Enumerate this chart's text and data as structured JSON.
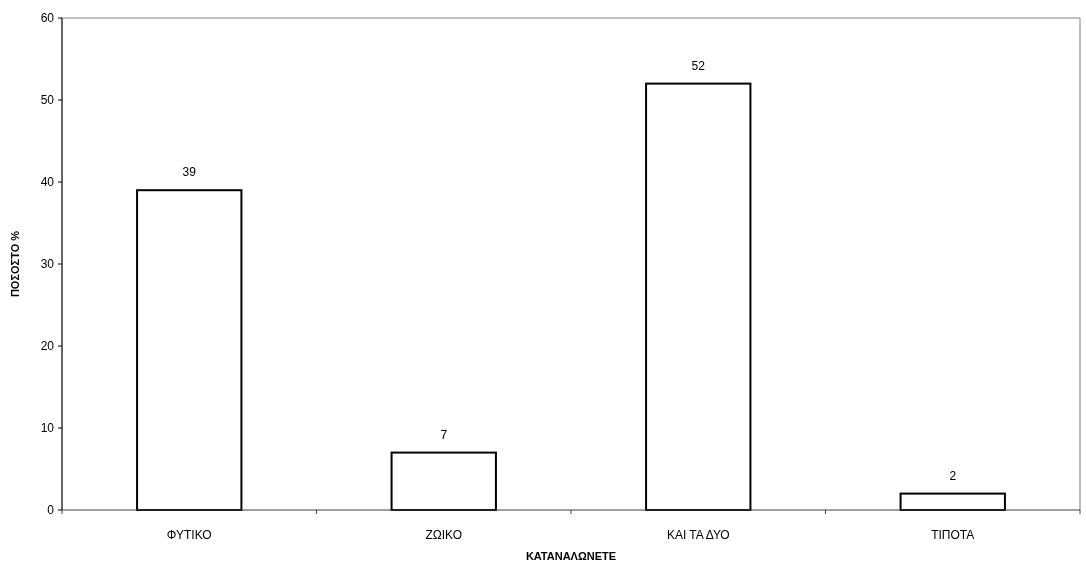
{
  "chart_data": {
    "type": "bar",
    "xlabel": "ΚΑΤΑΝΑΛΩΝΕΤΕ",
    "ylabel": "ΠΟΣΟΣΤΟ %",
    "categories": [
      "ΦΥΤΙΚΟ",
      "ΖΩΙΚΟ",
      "ΚΑΙ ΤΑ ΔΥΟ",
      "ΤΙΠΟΤΑ"
    ],
    "values": [
      39,
      7,
      52,
      2
    ],
    "color": "#ffffff",
    "ylim": [
      0,
      60
    ],
    "yticks": [
      0,
      10,
      20,
      30,
      40,
      50,
      60
    ],
    "data_labels": true
  }
}
